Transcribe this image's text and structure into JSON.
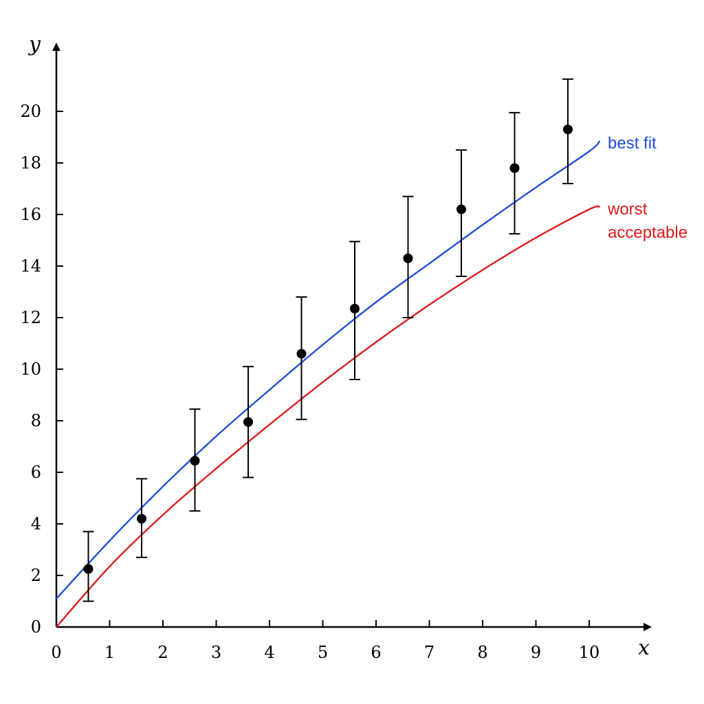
{
  "chart_data": {
    "type": "scatter",
    "xlabel": "x",
    "ylabel": "y",
    "xlim": [
      0,
      10.9
    ],
    "ylim": [
      0,
      22
    ],
    "x_ticks": [
      0,
      1,
      2,
      3,
      4,
      5,
      6,
      7,
      8,
      9,
      10
    ],
    "y_ticks": [
      0,
      2,
      4,
      6,
      8,
      10,
      12,
      14,
      16,
      18,
      20
    ],
    "grid": false,
    "points": {
      "x": [
        0.6,
        1.6,
        2.6,
        3.6,
        4.6,
        5.6,
        6.6,
        7.6,
        8.6,
        9.6
      ],
      "y": [
        2.25,
        4.2,
        6.45,
        7.95,
        10.6,
        12.35,
        14.3,
        16.2,
        17.8,
        19.3
      ],
      "y_error_low": [
        1.0,
        2.7,
        4.5,
        5.8,
        8.05,
        9.6,
        12.0,
        13.6,
        15.25,
        17.2
      ],
      "y_error_high": [
        3.7,
        5.75,
        8.45,
        10.1,
        12.8,
        14.95,
        16.7,
        18.5,
        19.95,
        21.25
      ]
    },
    "series": [
      {
        "name": "best fit",
        "color": "#1f4fd6",
        "x": [
          0,
          1,
          2,
          3,
          4,
          5,
          6,
          7,
          8,
          9,
          10,
          10.2
        ],
        "y": [
          1.1,
          3.35,
          5.45,
          7.4,
          9.2,
          10.95,
          12.6,
          14.1,
          15.6,
          17.05,
          18.45,
          18.85
        ]
      },
      {
        "name": "worst acceptable",
        "color": "#e01a1a",
        "x": [
          0,
          1,
          2,
          3,
          4,
          5,
          6,
          7,
          8,
          9,
          10,
          10.2
        ],
        "y": [
          0,
          2.35,
          4.35,
          6.15,
          7.85,
          9.5,
          11.05,
          12.5,
          13.85,
          15.1,
          16.2,
          16.3
        ]
      }
    ]
  }
}
